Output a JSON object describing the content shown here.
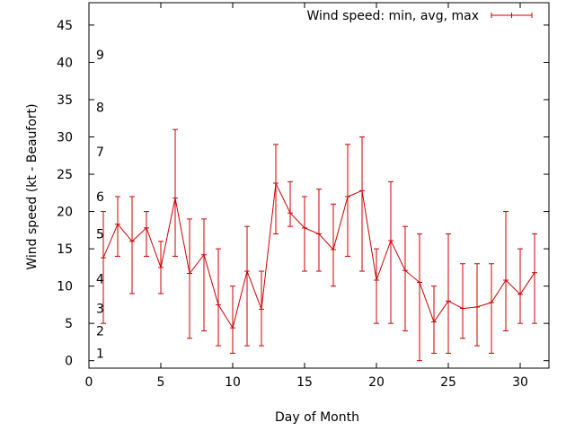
{
  "chart_data": {
    "type": "line",
    "title": "",
    "xlabel": "Day of Month",
    "ylabel": "Wind speed (kt - Beaufort)",
    "xlim": [
      0,
      32
    ],
    "ylim": [
      -1,
      48
    ],
    "x_ticks": [
      0,
      5,
      10,
      15,
      20,
      25,
      30
    ],
    "y_ticks": [
      0,
      5,
      10,
      15,
      20,
      25,
      30,
      35,
      40,
      45
    ],
    "grid": false,
    "legend": {
      "position": "top-right"
    },
    "beaufort_labels": [
      {
        "label": "1",
        "y": 1
      },
      {
        "label": "2",
        "y": 4
      },
      {
        "label": "3",
        "y": 7
      },
      {
        "label": "4",
        "y": 11
      },
      {
        "label": "5",
        "y": 17
      },
      {
        "label": "6",
        "y": 22
      },
      {
        "label": "7",
        "y": 28
      },
      {
        "label": "8",
        "y": 34
      },
      {
        "label": "9",
        "y": 41
      }
    ],
    "series": [
      {
        "name": "Wind speed: min, avg, max",
        "color": "#cc0000",
        "x": [
          1,
          2,
          3,
          4,
          5,
          6,
          7,
          8,
          9,
          10,
          11,
          12,
          13,
          14,
          15,
          16,
          17,
          18,
          19,
          20,
          21,
          22,
          23,
          24,
          25,
          26,
          27,
          28,
          29,
          30,
          31
        ],
        "avg": [
          13.8,
          18.3,
          16,
          17.8,
          12.5,
          21.8,
          11.7,
          14.2,
          7.5,
          4.4,
          12,
          6.9,
          23.8,
          19.8,
          17.8,
          17,
          14.9,
          22,
          22.8,
          10.8,
          16.1,
          12.1,
          10.5,
          5.2,
          8,
          7,
          7.2,
          7.8,
          10.8,
          8.9,
          11.8
        ],
        "min": [
          5,
          14,
          9,
          14,
          9,
          14,
          3,
          4,
          2,
          1,
          2,
          2,
          17,
          18,
          12,
          12,
          10,
          14,
          12,
          5,
          5,
          4,
          0,
          1,
          1,
          3,
          2,
          1,
          4,
          5,
          5
        ],
        "max": [
          20,
          22,
          22,
          20,
          16,
          31,
          19,
          19,
          15,
          10,
          18,
          12,
          29,
          24,
          22,
          23,
          21,
          29,
          30,
          15,
          24,
          18,
          17,
          10,
          17,
          13,
          13,
          13,
          20,
          15,
          17
        ]
      }
    ]
  }
}
